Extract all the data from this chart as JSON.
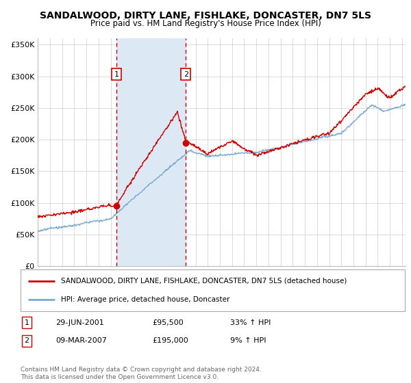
{
  "title": "SANDALWOOD, DIRTY LANE, FISHLAKE, DONCASTER, DN7 5LS",
  "subtitle": "Price paid vs. HM Land Registry's House Price Index (HPI)",
  "ylabel_ticks": [
    "£0",
    "£50K",
    "£100K",
    "£150K",
    "£200K",
    "£250K",
    "£300K",
    "£350K"
  ],
  "ytick_values": [
    0,
    50000,
    100000,
    150000,
    200000,
    250000,
    300000,
    350000
  ],
  "ylim": [
    0,
    360000
  ],
  "xlim_start": 1995.0,
  "xlim_end": 2025.3,
  "hpi_color": "#7aaad4",
  "price_color": "#cc0000",
  "background_color": "#ffffff",
  "plot_bg_color": "#ffffff",
  "grid_color": "#cccccc",
  "sale1_year": 2001.49,
  "sale1_price": 95500,
  "sale1_label": "1",
  "sale1_date": "29-JUN-2001",
  "sale1_pct": "33% ↑ HPI",
  "sale2_year": 2007.19,
  "sale2_price": 195000,
  "sale2_label": "2",
  "sale2_date": "09-MAR-2007",
  "sale2_pct": "9% ↑ HPI",
  "legend_label_price": "SANDALWOOD, DIRTY LANE, FISHLAKE, DONCASTER, DN7 5LS (detached house)",
  "legend_label_hpi": "HPI: Average price, detached house, Doncaster",
  "footer": "Contains HM Land Registry data © Crown copyright and database right 2024.\nThis data is licensed under the Open Government Licence v3.0.",
  "shade_color": "#dce9f5",
  "dashed_color": "#cc0000",
  "annotation_box_color": "#ffffff",
  "annotation_box_edge": "#cc0000"
}
